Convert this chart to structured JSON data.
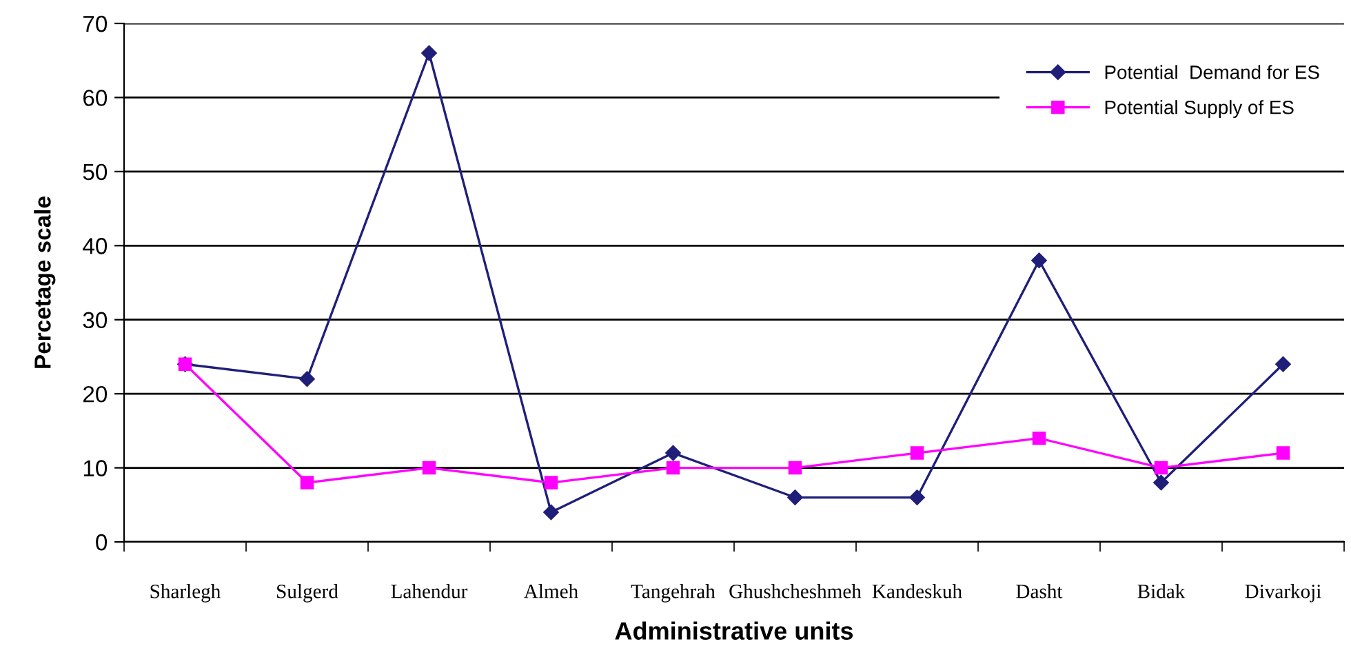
{
  "chart_data": {
    "type": "line",
    "xlabel": "Administrative units",
    "ylabel": "Percetage scale",
    "categories": [
      "Sharlegh",
      "Sulgerd",
      "Lahendur",
      "Almeh",
      "Tangehrah",
      "Ghushcheshmeh",
      "Kandeskuh",
      "Dasht",
      "Bidak",
      "Divarkoji"
    ],
    "series": [
      {
        "name": "Potential  Demand for ES",
        "color": "#1f1f7a",
        "marker": "diamond",
        "values": [
          24,
          22,
          66,
          4,
          12,
          6,
          6,
          38,
          8,
          24
        ]
      },
      {
        "name": "Potential Supply of ES",
        "color": "#ff00ff",
        "marker": "square",
        "values": [
          24,
          8,
          10,
          8,
          10,
          10,
          12,
          14,
          10,
          12
        ]
      }
    ],
    "ylim": [
      0,
      70
    ],
    "yticks": [
      0,
      10,
      20,
      30,
      40,
      50,
      60,
      70
    ],
    "grid": "y",
    "legend": "top right",
    "line_style": "solid"
  }
}
